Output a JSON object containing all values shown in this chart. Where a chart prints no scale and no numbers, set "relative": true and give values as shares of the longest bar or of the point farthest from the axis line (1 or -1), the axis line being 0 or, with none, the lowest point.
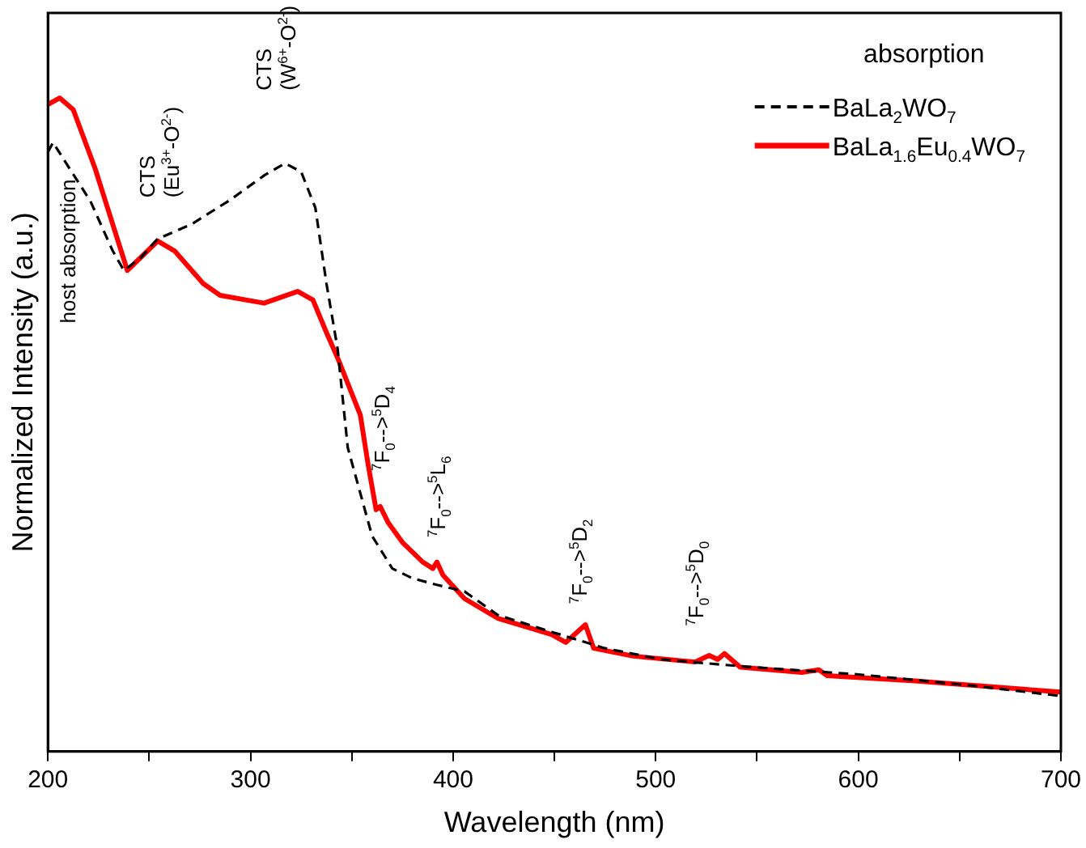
{
  "chart_data": {
    "type": "line",
    "relative": true,
    "xlabel": "Wavelength (nm)",
    "ylabel": "Normalized Intensity (a.u.)",
    "xlim": [
      200,
      700
    ],
    "xticks": [
      200,
      {
        "value": 250,
        "label": null
      },
      300,
      {
        "value": 350,
        "label": null
      },
      400,
      {
        "value": 450,
        "label": null
      },
      500,
      {
        "value": 550,
        "label": null
      },
      600,
      {
        "value": 650,
        "label": null
      },
      700
    ],
    "grid": false,
    "marker": "none",
    "legend": "top right",
    "legend_title": "absorption",
    "series": [
      {
        "name": "BaLa$_{2}$WO$_{7}$",
        "color": "#000000",
        "line_style": "dashed",
        "x": [
          200,
          202.5,
          208,
          221,
          232,
          237.5,
          246,
          254,
          271,
          290,
          307,
          317,
          325,
          332,
          337.5,
          343,
          348,
          360,
          370,
          380,
          392,
          405.6,
          422,
          448.6,
          475,
          502.8,
          544,
          600,
          655.6,
          700
        ],
        "values": [
          0.917,
          0.932,
          0.905,
          0.842,
          0.766,
          0.736,
          0.756,
          0.784,
          0.807,
          0.844,
          0.882,
          0.9,
          0.887,
          0.832,
          0.716,
          0.616,
          0.465,
          0.33,
          0.28,
          0.265,
          0.255,
          0.245,
          0.209,
          0.183,
          0.158,
          0.141,
          0.13,
          0.118,
          0.101,
          0.085
        ]
      },
      {
        "name": "BaLa$_{1.6}$Eu$_{0.4}$WO$_{7}$",
        "color": "#ff0000",
        "line_style": "solid",
        "x": [
          200,
          205.8,
          212.5,
          223.3,
          239.2,
          254.2,
          262.5,
          276.7,
          285,
          306.7,
          323.3,
          330.8,
          337.5,
          343.3,
          354.2,
          358,
          362,
          364,
          368,
          375,
          385,
          390,
          392,
          395,
          405.6,
          422,
          448.6,
          455.6,
          465.3,
          469.4,
          488.9,
          519.4,
          526.4,
          530.6,
          533.9,
          541.7,
          572,
          580.6,
          584.7,
          627.8,
          700
        ],
        "values": [
          0.99,
          1.0,
          0.982,
          0.892,
          0.736,
          0.781,
          0.766,
          0.716,
          0.698,
          0.686,
          0.704,
          0.691,
          0.641,
          0.6,
          0.515,
          0.44,
          0.37,
          0.375,
          0.35,
          0.32,
          0.29,
          0.28,
          0.29,
          0.27,
          0.234,
          0.204,
          0.179,
          0.167,
          0.194,
          0.158,
          0.146,
          0.137,
          0.147,
          0.141,
          0.15,
          0.129,
          0.121,
          0.125,
          0.116,
          0.108,
          0.091
        ]
      }
    ],
    "annotations": [
      "host absorption",
      "CTS\n(Eu$^{3+}$-O$^{2-}$)",
      "CTS\n(W$^{6+}$-O$^{2-}$)",
      "$^{7}$F$_{0}$-->$^{5}$D$_{4}$",
      "$^{7}$F$_{0}$-->$^{5}$L$_{6}$",
      "$^{7}$F$_{0}$-->$^{5}$D$_{2}$",
      "$^{7}$F$_{0}$-->$^{5}$D$_{0}$"
    ]
  }
}
